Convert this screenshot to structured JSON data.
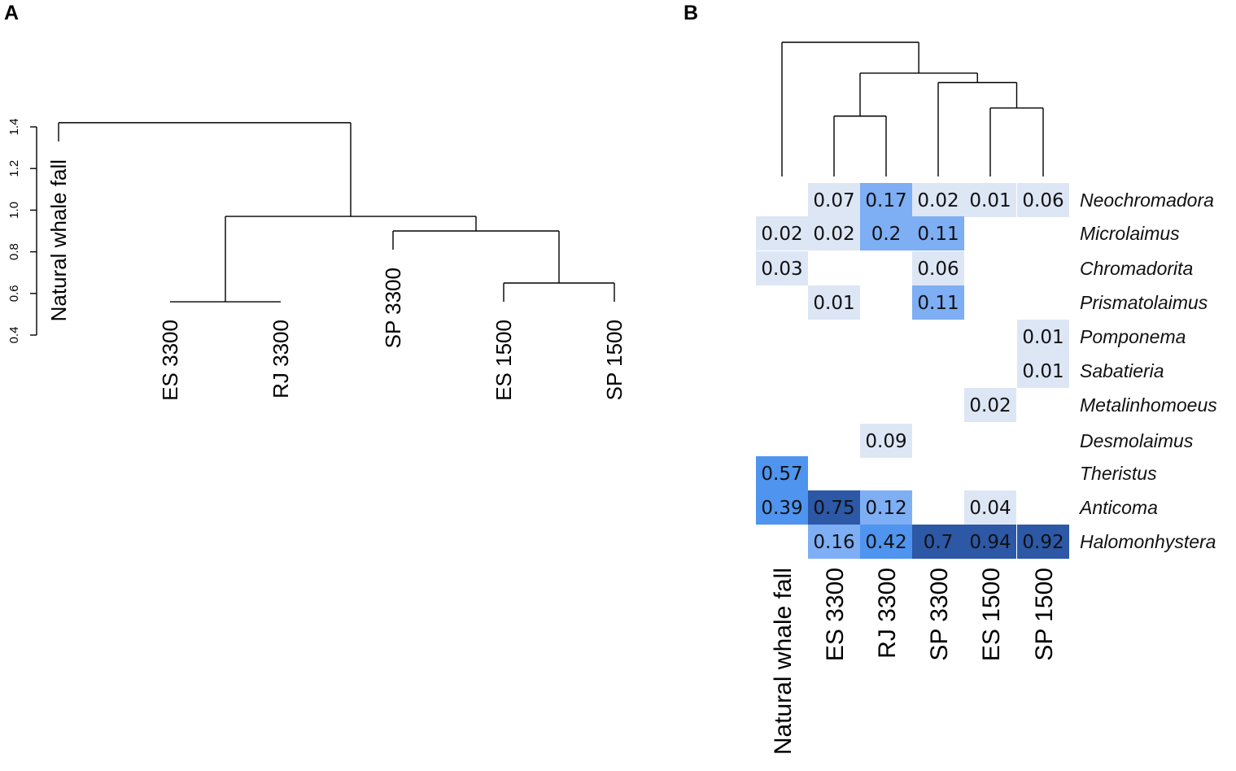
{
  "panels": {
    "a_label": "A",
    "b_label": "B"
  },
  "colors": {
    "low": "#dde6f5",
    "mid": "#7eaef4",
    "bright": "#4f94ee",
    "dark": "#2c58a6"
  },
  "chart_data": [
    {
      "type": "dendrogram",
      "panel": "A",
      "ylabel": "",
      "ylim": [
        0.4,
        1.4
      ],
      "yticks": [
        "0.4",
        "0.6",
        "0.8",
        "1.0",
        "1.2",
        "1.4"
      ],
      "leaves": [
        {
          "label": "Natural whale fall",
          "height": 1.33
        },
        {
          "label": "ES 3300",
          "height": 0.56
        },
        {
          "label": "RJ 3300",
          "height": 0.56
        },
        {
          "label": "SP 3300",
          "height": 0.81
        },
        {
          "label": "ES 1500",
          "height": 0.56
        },
        {
          "label": "SP 1500",
          "height": 0.56
        }
      ],
      "merges": [
        {
          "left": 1,
          "right": 2,
          "height": 0.56
        },
        {
          "left": 4,
          "right": 5,
          "height": 0.65
        },
        {
          "left": 3,
          "right": -2,
          "height": 0.9
        },
        {
          "left": -1,
          "right": -3,
          "height": 0.97
        },
        {
          "left": 0,
          "right": -4,
          "height": 1.42
        }
      ]
    },
    {
      "type": "heatmap",
      "panel": "B",
      "columns": [
        "Natural whale fall",
        "ES 3300",
        "RJ 3300",
        "SP 3300",
        "ES 1500",
        "SP 1500"
      ],
      "rows": [
        "Neochromadora",
        "Microlaimus",
        "Chromadorita",
        "Prismatolaimus",
        "Pomponema",
        "Sabatieria",
        "Metalinhomoeus",
        "Desmolaimus",
        "Theristus",
        "Anticoma",
        "Halomonhystera"
      ],
      "cells": [
        {
          "row": 0,
          "col": 1,
          "value": 0.07,
          "label": "0.07"
        },
        {
          "row": 0,
          "col": 2,
          "value": 0.17,
          "label": "0.17"
        },
        {
          "row": 0,
          "col": 3,
          "value": 0.02,
          "label": "0.02"
        },
        {
          "row": 0,
          "col": 4,
          "value": 0.01,
          "label": "0.01"
        },
        {
          "row": 0,
          "col": 5,
          "value": 0.06,
          "label": "0.06"
        },
        {
          "row": 1,
          "col": 0,
          "value": 0.02,
          "label": "0.02"
        },
        {
          "row": 1,
          "col": 1,
          "value": 0.02,
          "label": "0.02"
        },
        {
          "row": 1,
          "col": 2,
          "value": 0.2,
          "label": "0.2"
        },
        {
          "row": 1,
          "col": 3,
          "value": 0.11,
          "label": "0.11"
        },
        {
          "row": 2,
          "col": 0,
          "value": 0.03,
          "label": "0.03"
        },
        {
          "row": 2,
          "col": 3,
          "value": 0.06,
          "label": "0.06"
        },
        {
          "row": 3,
          "col": 1,
          "value": 0.01,
          "label": "0.01"
        },
        {
          "row": 3,
          "col": 3,
          "value": 0.11,
          "label": "0.11"
        },
        {
          "row": 4,
          "col": 5,
          "value": 0.01,
          "label": "0.01"
        },
        {
          "row": 5,
          "col": 5,
          "value": 0.01,
          "label": "0.01"
        },
        {
          "row": 6,
          "col": 4,
          "value": 0.02,
          "label": "0.02"
        },
        {
          "row": 7,
          "col": 2,
          "value": 0.09,
          "label": "0.09"
        },
        {
          "row": 8,
          "col": 0,
          "value": 0.57,
          "label": "0.57"
        },
        {
          "row": 9,
          "col": 0,
          "value": 0.39,
          "label": "0.39"
        },
        {
          "row": 9,
          "col": 1,
          "value": 0.75,
          "label": "0.75"
        },
        {
          "row": 9,
          "col": 2,
          "value": 0.12,
          "label": "0.12"
        },
        {
          "row": 9,
          "col": 4,
          "value": 0.04,
          "label": "0.04"
        },
        {
          "row": 10,
          "col": 1,
          "value": 0.16,
          "label": "0.16"
        },
        {
          "row": 10,
          "col": 2,
          "value": 0.42,
          "label": "0.42"
        },
        {
          "row": 10,
          "col": 3,
          "value": 0.7,
          "label": "0.7"
        },
        {
          "row": 10,
          "col": 4,
          "value": 0.94,
          "label": "0.94"
        },
        {
          "row": 10,
          "col": 5,
          "value": 0.92,
          "label": "0.92"
        }
      ],
      "column_tree": {
        "merges": [
          {
            "left": 1,
            "right": 2,
            "height": 0.45
          },
          {
            "left": 4,
            "right": 5,
            "height": 0.51
          },
          {
            "left": 3,
            "right": -2,
            "height": 0.7
          },
          {
            "left": -1,
            "right": -3,
            "height": 0.77
          },
          {
            "left": 0,
            "right": -4,
            "height": 1.0
          }
        ]
      }
    }
  ]
}
